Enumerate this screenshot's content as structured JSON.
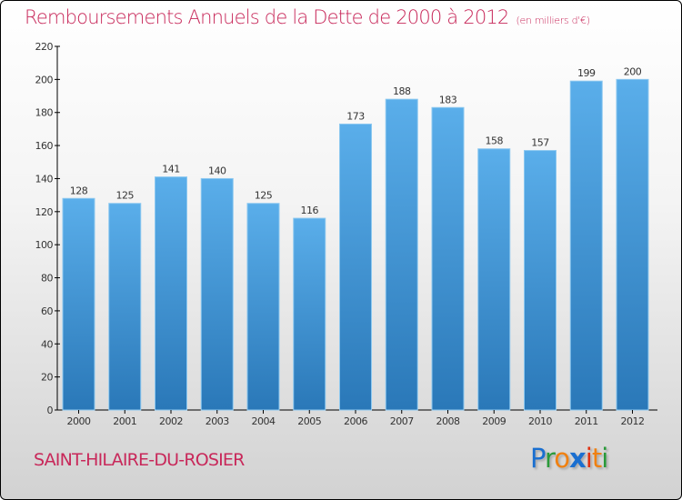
{
  "chart_data": {
    "type": "bar",
    "title": "Remboursements Annuels de la Dette de 2000 à 2012",
    "subtitle": "(en milliers d'€)",
    "categories": [
      "2000",
      "2001",
      "2002",
      "2003",
      "2004",
      "2005",
      "2006",
      "2007",
      "2008",
      "2009",
      "2010",
      "2011",
      "2012"
    ],
    "values": [
      128,
      125,
      141,
      140,
      125,
      116,
      173,
      188,
      183,
      158,
      157,
      199,
      200
    ],
    "ylim": [
      0,
      220
    ],
    "yticks": [
      0,
      20,
      40,
      60,
      80,
      100,
      120,
      140,
      160,
      180,
      200,
      220
    ],
    "xlabel": "",
    "ylabel": "",
    "bar_color": "#4fa3e0",
    "grid": false
  },
  "city": "SAINT-HILAIRE-DU-ROSIER",
  "logo": "Proxiti"
}
